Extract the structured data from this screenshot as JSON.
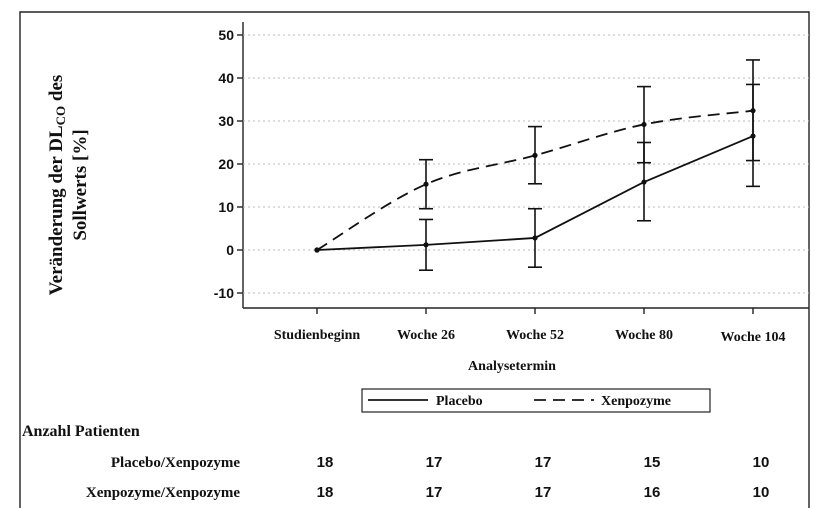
{
  "chart_data": {
    "type": "line",
    "title": "",
    "xlabel": "Analysetermin",
    "ylabel": "Veränderung der DLco des Sollwerts [%]",
    "ylabel_lines": [
      "Veränderung der DL",
      "CO",
      " des",
      "Sollwerts [%]"
    ],
    "categories": [
      "Studienbeginn",
      "Woche 26",
      "Woche 52",
      "Woche 80",
      "Woche 104"
    ],
    "ylim": [
      -13,
      53
    ],
    "yticks": [
      -10,
      0,
      10,
      20,
      30,
      40,
      50
    ],
    "grid": "horizontal-dotted",
    "legend_position": "bottom-center",
    "series": [
      {
        "name": "Placebo",
        "style": "solid",
        "values": [
          0,
          1.2,
          2.8,
          15.8,
          26.5
        ],
        "error_low": [
          null,
          -4.7,
          -4.0,
          6.8,
          14.8
        ],
        "error_high": [
          null,
          7.1,
          9.6,
          25.0,
          38.5
        ]
      },
      {
        "name": "Xenpozyme",
        "style": "dashed",
        "values": [
          0,
          15.3,
          22.0,
          29.2,
          32.4
        ],
        "error_low": [
          null,
          9.6,
          15.4,
          20.3,
          20.8
        ],
        "error_high": [
          null,
          21.0,
          28.7,
          38.0,
          44.2
        ]
      }
    ]
  },
  "patients_table": {
    "heading": "Anzahl Patienten",
    "rows": [
      {
        "label": "Placebo/Xenpozyme",
        "counts": [
          "18",
          "17",
          "17",
          "15",
          "10"
        ]
      },
      {
        "label": "Xenpozyme/Xenpozyme",
        "counts": [
          "18",
          "17",
          "17",
          "16",
          "10"
        ]
      }
    ]
  },
  "colors": {
    "line": "#111111",
    "grid": "#bbbbbb",
    "background": "#ffffff"
  }
}
